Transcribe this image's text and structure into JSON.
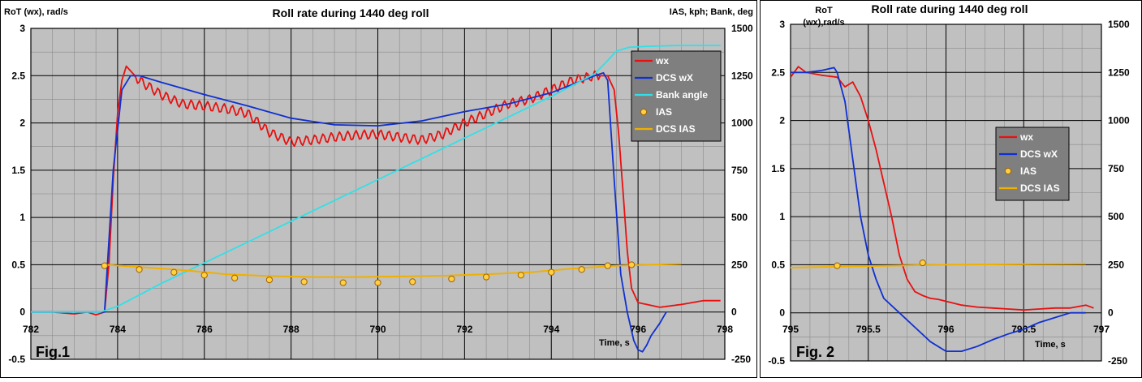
{
  "colors": {
    "plot_bg": "#c0c0c0",
    "grid": "#000000",
    "wx": "#e81010",
    "dcs_wx": "#1030d0",
    "bank": "#30e0e8",
    "ias_marker_fill": "#ffd040",
    "ias_marker_stroke": "#a06000",
    "dcs_ias": "#f0b000",
    "legend_bg": "#7f7f7f"
  },
  "chart_data": [
    {
      "type": "line",
      "title": "Roll rate during 1440 deg roll",
      "ylabel": "RoT (wx), rad/s",
      "y2label": "IAS, kph;  Bank, deg",
      "xlabel": "Time, s",
      "fig_label": "Fig.1",
      "xlim": [
        782,
        798
      ],
      "ylim": [
        -0.5,
        3
      ],
      "y2lim": [
        -250,
        1500
      ],
      "xticks": [
        "782",
        "784",
        "786",
        "788",
        "790",
        "792",
        "794",
        "796",
        "798"
      ],
      "yticks": [
        "-0.5",
        "0",
        "0.5",
        "1",
        "1.5",
        "2",
        "2.5",
        "3"
      ],
      "y2ticks": [
        "-250",
        "0",
        "250",
        "500",
        "750",
        "1000",
        "1250",
        "1500"
      ],
      "grid": true,
      "legend_position": "top-right",
      "legend": [
        {
          "label": "wx",
          "kind": "line",
          "color": "wx"
        },
        {
          "label": "DCS wX",
          "kind": "line",
          "color": "dcs_wx"
        },
        {
          "label": "Bank angle",
          "kind": "line",
          "color": "bank"
        },
        {
          "label": "IAS",
          "kind": "marker",
          "color": "ias_marker_fill"
        },
        {
          "label": "DCS IAS",
          "kind": "line",
          "color": "dcs_ias"
        }
      ],
      "series": [
        {
          "name": "wx",
          "axis": "left",
          "color": "wx",
          "wiggle": 0.05,
          "x": [
            782.0,
            782.5,
            783.0,
            783.3,
            783.5,
            783.7,
            783.8,
            783.9,
            784.0,
            784.1,
            784.2,
            784.3,
            784.5,
            785.0,
            785.5,
            786.0,
            786.5,
            787.0,
            787.5,
            788.0,
            788.5,
            789.0,
            789.5,
            790.0,
            790.5,
            791.0,
            791.5,
            792.0,
            792.5,
            793.0,
            793.5,
            794.0,
            794.5,
            795.0,
            795.3,
            795.45,
            795.55,
            795.65,
            795.75,
            795.85,
            796.0,
            796.2,
            796.5,
            797.0,
            797.5,
            797.9
          ],
          "y": [
            0.0,
            0.0,
            -0.02,
            0.0,
            -0.03,
            0.0,
            0.5,
            1.4,
            2.1,
            2.45,
            2.6,
            2.55,
            2.45,
            2.3,
            2.2,
            2.18,
            2.15,
            2.1,
            1.9,
            1.8,
            1.82,
            1.85,
            1.87,
            1.88,
            1.85,
            1.82,
            1.88,
            2.0,
            2.1,
            2.2,
            2.25,
            2.35,
            2.45,
            2.5,
            2.5,
            2.35,
            1.9,
            1.3,
            0.65,
            0.25,
            0.1,
            0.08,
            0.05,
            0.08,
            0.12,
            0.12
          ]
        },
        {
          "name": "DCS wX",
          "axis": "left",
          "color": "dcs_wx",
          "x": [
            782.0,
            783.7,
            783.9,
            784.1,
            784.3,
            784.5,
            785.0,
            786.0,
            787.0,
            788.0,
            789.0,
            790.0,
            791.0,
            792.0,
            793.0,
            794.0,
            795.0,
            795.2,
            795.3,
            795.45,
            795.6,
            795.75,
            795.9,
            796.0,
            796.1,
            796.2,
            796.3,
            796.5,
            796.65
          ],
          "y": [
            0.0,
            0.0,
            1.5,
            2.35,
            2.5,
            2.5,
            2.43,
            2.3,
            2.18,
            2.05,
            1.98,
            1.97,
            2.02,
            2.12,
            2.2,
            2.32,
            2.5,
            2.53,
            2.45,
            1.4,
            0.4,
            0.0,
            -0.3,
            -0.4,
            -0.42,
            -0.35,
            -0.25,
            -0.12,
            0.0
          ]
        },
        {
          "name": "Bank angle",
          "axis": "right",
          "color": "bank",
          "x": [
            782.0,
            783.6,
            784.0,
            784.5,
            785.0,
            786.0,
            787.0,
            788.0,
            789.0,
            790.0,
            791.0,
            792.0,
            793.0,
            794.0,
            795.0,
            795.3,
            795.5,
            795.8,
            796.2,
            797.0,
            797.9
          ],
          "y": [
            0,
            0,
            30,
            90,
            150,
            260,
            370,
            480,
            590,
            700,
            810,
            920,
            1030,
            1140,
            1260,
            1330,
            1380,
            1400,
            1405,
            1410,
            1410
          ]
        },
        {
          "name": "IAS",
          "axis": "right",
          "color": "ias_marker_fill",
          "kind": "marker",
          "x": [
            783.7,
            784.5,
            785.3,
            786.0,
            786.7,
            787.5,
            788.3,
            789.2,
            790.0,
            790.8,
            791.7,
            792.5,
            793.3,
            794.0,
            794.7,
            795.3,
            795.85
          ],
          "y": [
            245,
            225,
            210,
            195,
            180,
            170,
            160,
            155,
            155,
            160,
            175,
            185,
            195,
            210,
            225,
            245,
            250
          ]
        },
        {
          "name": "DCS IAS",
          "axis": "right",
          "color": "dcs_ias",
          "x": [
            783.7,
            784.5,
            785.5,
            786.5,
            787.5,
            788.5,
            789.5,
            790.5,
            791.5,
            792.5,
            793.5,
            794.5,
            795.5,
            796.0,
            796.5,
            797.0
          ],
          "y": [
            250,
            238,
            222,
            200,
            190,
            185,
            185,
            188,
            192,
            200,
            210,
            230,
            245,
            248,
            252,
            255
          ]
        }
      ]
    },
    {
      "type": "line",
      "title": "Roll rate during 1440 deg roll",
      "ylabel": "RoT (wx),rad/s",
      "xlabel": "Time, s",
      "fig_label": "Fig. 2",
      "xlim": [
        795,
        797
      ],
      "ylim": [
        -0.5,
        3
      ],
      "y2lim": [
        -250,
        1500
      ],
      "xticks": [
        "795",
        "795.5",
        "796",
        "796.5",
        "797"
      ],
      "yticks": [
        "-0.5",
        "0",
        "0.5",
        "1",
        "1.5",
        "2",
        "2.5",
        "3"
      ],
      "y2ticks": [
        "-250",
        "0",
        "250",
        "500",
        "750",
        "1000",
        "1250",
        "1500"
      ],
      "grid": true,
      "legend_position": "center-right",
      "legend": [
        {
          "label": "wx",
          "kind": "line",
          "color": "wx"
        },
        {
          "label": "DCS wX",
          "kind": "line",
          "color": "dcs_wx"
        },
        {
          "label": "IAS",
          "kind": "marker",
          "color": "ias_marker_fill"
        },
        {
          "label": "DCS IAS",
          "kind": "line",
          "color": "dcs_ias"
        }
      ],
      "series": [
        {
          "name": "wx",
          "axis": "left",
          "color": "wx",
          "x": [
            795.0,
            795.05,
            795.1,
            795.2,
            795.3,
            795.35,
            795.4,
            795.45,
            795.5,
            795.55,
            795.6,
            795.65,
            795.7,
            795.75,
            795.8,
            795.85,
            795.9,
            795.95,
            796.0,
            796.1,
            796.2,
            796.3,
            796.4,
            796.5,
            796.6,
            796.7,
            796.8,
            796.9,
            796.95
          ],
          "y": [
            2.45,
            2.56,
            2.5,
            2.47,
            2.45,
            2.35,
            2.4,
            2.25,
            2.0,
            1.7,
            1.35,
            1.0,
            0.6,
            0.35,
            0.22,
            0.18,
            0.15,
            0.14,
            0.12,
            0.08,
            0.06,
            0.05,
            0.04,
            0.03,
            0.04,
            0.05,
            0.05,
            0.08,
            0.05
          ]
        },
        {
          "name": "DCS wX",
          "axis": "left",
          "color": "dcs_wx",
          "x": [
            795.0,
            795.1,
            795.2,
            795.28,
            795.3,
            795.35,
            795.4,
            795.45,
            795.5,
            795.55,
            795.6,
            795.7,
            795.8,
            795.9,
            796.0,
            796.1,
            796.2,
            796.3,
            796.4,
            796.5,
            796.6,
            796.7,
            796.8,
            796.9
          ],
          "y": [
            2.5,
            2.5,
            2.52,
            2.55,
            2.5,
            2.2,
            1.6,
            1.0,
            0.6,
            0.35,
            0.15,
            0.0,
            -0.15,
            -0.3,
            -0.4,
            -0.4,
            -0.35,
            -0.28,
            -0.22,
            -0.17,
            -0.1,
            -0.05,
            0.0,
            0.0
          ]
        },
        {
          "name": "IAS",
          "axis": "right",
          "color": "ias_marker_fill",
          "kind": "marker",
          "x": [
            795.3,
            795.85
          ],
          "y": [
            245,
            260
          ]
        },
        {
          "name": "DCS IAS",
          "axis": "right",
          "color": "dcs_ias",
          "x": [
            795.0,
            795.5,
            796.0,
            796.5,
            796.9
          ],
          "y": [
            235,
            243,
            250,
            253,
            255
          ]
        }
      ]
    }
  ]
}
